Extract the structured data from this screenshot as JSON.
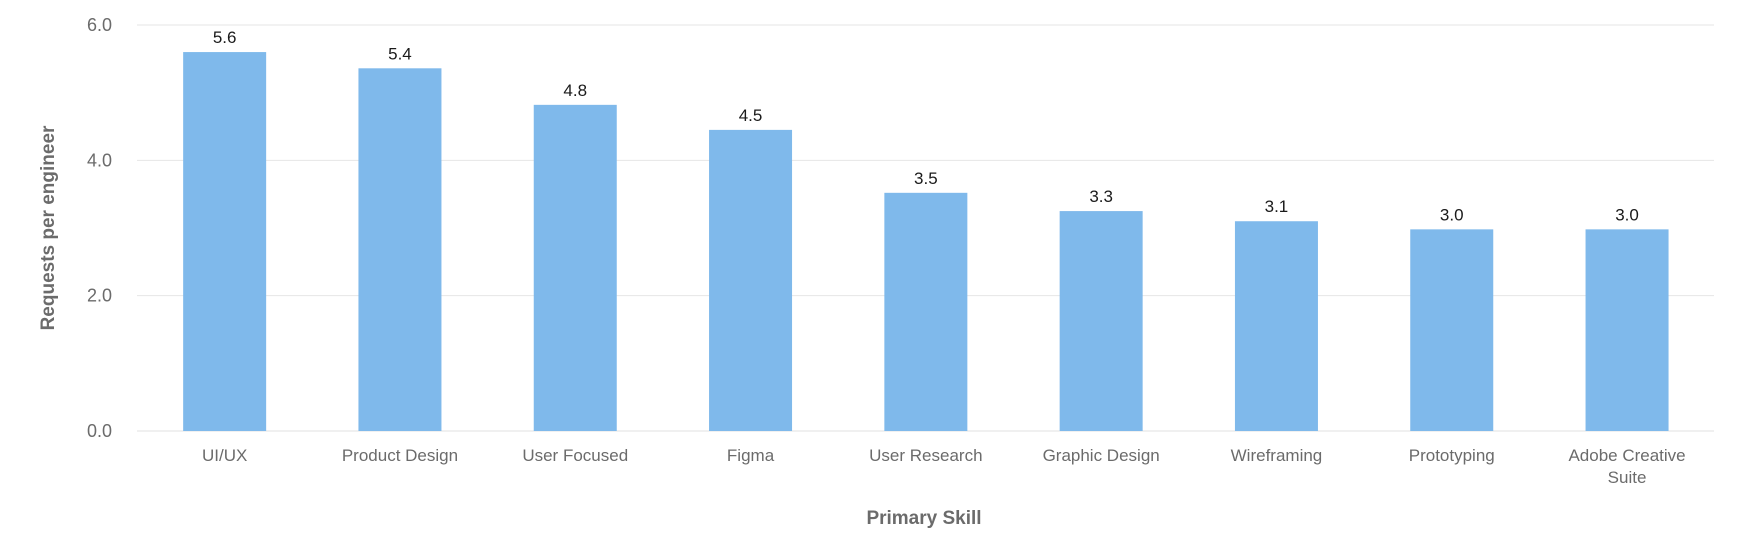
{
  "chart_data": {
    "type": "bar",
    "categories": [
      "UI/UX",
      "Product Design",
      "User Focused",
      "Figma",
      "User Research",
      "Graphic Design",
      "Wireframing",
      "Prototyping",
      "Adobe Creative Suite"
    ],
    "values": [
      5.6,
      5.36,
      4.82,
      4.45,
      3.52,
      3.25,
      3.1,
      2.98,
      2.98
    ],
    "data_labels": [
      "5.6",
      "5.4",
      "4.8",
      "4.5",
      "3.5",
      "3.3",
      "3.1",
      "3.0",
      "3.0"
    ],
    "y_ticks": [
      0,
      2,
      4,
      6
    ],
    "y_tick_labels": [
      "0.0",
      "2.0",
      "4.0",
      "6.0"
    ],
    "ylim": [
      0,
      6
    ],
    "xlabel": "Primary Skill",
    "ylabel": "Requests per engineer",
    "grid": true,
    "legend": "none",
    "colors": {
      "bar": "#7fb9eb",
      "grid": "#e6e6e6"
    }
  }
}
